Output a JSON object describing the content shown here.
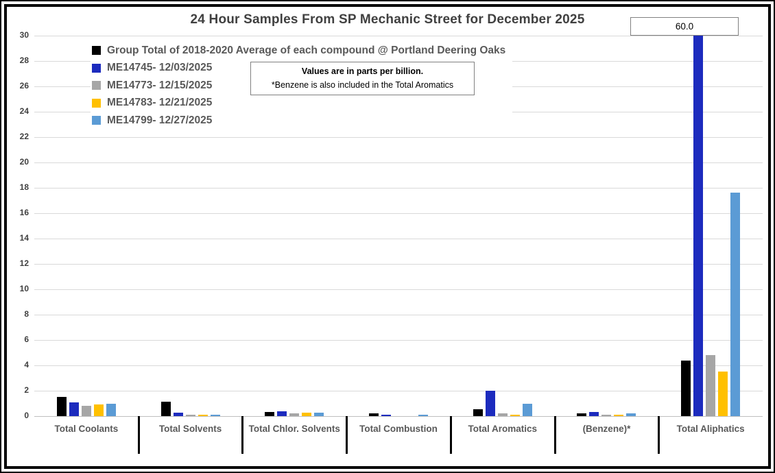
{
  "title": "24 Hour Samples From SP Mechanic Street for December 2025",
  "note": {
    "line1": "Values are in parts per billion.",
    "line2": "*Benzene is also included in the Total Aromatics"
  },
  "colors": {
    "background": "#FFFFFF",
    "gridline": "#D9D9D9",
    "axis_text": "#404040",
    "label_text": "#595959",
    "frame": "#000000"
  },
  "chart_data": {
    "type": "bar",
    "title": "24 Hour Samples From SP Mechanic Street for December 2025",
    "xlabel": "",
    "ylabel": "",
    "ylim": [
      0,
      30
    ],
    "ytick_step": 2,
    "grid": true,
    "legend_position": "top-left-inside",
    "units": "parts per billion",
    "categories": [
      "Total Coolants",
      "Total Solvents",
      "Total Chlor. Solvents",
      "Total Combustion",
      "Total Aromatics",
      "(Benzene)*",
      "Total Aliphatics"
    ],
    "series": [
      {
        "name": "Group Total of 2018-2020 Average of each compound @ Portland Deering Oaks",
        "color": "#000000",
        "values": [
          1.5,
          1.15,
          0.35,
          0.2,
          0.55,
          0.2,
          4.4
        ]
      },
      {
        "name": "ME14745- 12/03/2025",
        "color": "#1C2BBE",
        "values": [
          1.1,
          0.25,
          0.4,
          0.1,
          2.0,
          0.35,
          60.0
        ]
      },
      {
        "name": "ME14773- 12/15/2025",
        "color": "#A6A6A6",
        "values": [
          0.8,
          0.1,
          0.2,
          0,
          0.2,
          0.1,
          4.8
        ]
      },
      {
        "name": "ME14783- 12/21/2025",
        "color": "#FFC000",
        "values": [
          0.9,
          0.1,
          0.3,
          0,
          0.1,
          0.1,
          3.5
        ]
      },
      {
        "name": "ME14799- 12/27/2025",
        "color": "#5B9BD5",
        "values": [
          0.95,
          0.1,
          0.3,
          0.1,
          0.95,
          0.2,
          17.6
        ]
      }
    ],
    "annotations": [
      {
        "text": "60.0",
        "category": "Total Aliphatics",
        "series": "ME14745- 12/03/2025",
        "meaning": "bar value exceeds axis maximum of 30 and is clipped"
      }
    ]
  }
}
